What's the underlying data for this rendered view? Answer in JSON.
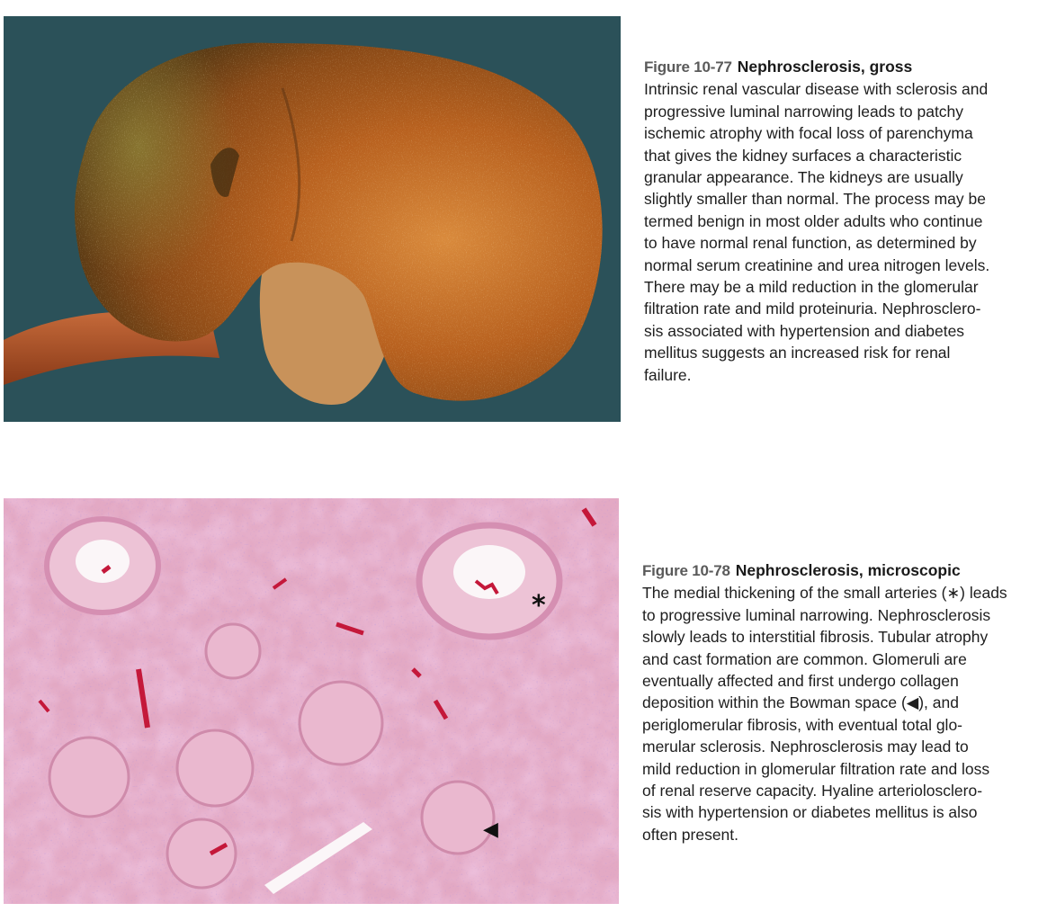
{
  "figures": [
    {
      "number": "Figure 10-77",
      "title": "Nephrosclerosis, gross",
      "caption_lines": [
        "Intrinsic renal vascular disease with sclerosis and",
        "progressive luminal narrowing leads to patchy",
        "ischemic atrophy with focal loss of parenchyma",
        "that gives the kidney surfaces a characteristic",
        "granular appearance. The kidneys are usually",
        "slightly smaller than normal. The process may be",
        "termed benign in most older adults who continue",
        "to have normal renal function, as determined by",
        "normal serum creatinine and urea nitrogen levels.",
        "There may be a mild reduction in the glomerular",
        "filtration rate and mild proteinuria. Nephrosclero-",
        "sis associated with hypertension and diabetes",
        "mellitus suggests an increased risk for renal",
        "failure."
      ]
    },
    {
      "number": "Figure 10-78",
      "title": "Nephrosclerosis, microscopic",
      "caption_lines": [
        "The medial thickening of the small arteries (∗) leads",
        "to progressive luminal narrowing. Nephrosclerosis",
        "slowly leads to interstitial fibrosis. Tubular atrophy",
        "and cast formation are common. Glomeruli are",
        "eventually affected and first undergo collagen",
        "deposition within the Bowman space (◀), and",
        "periglomerular fibrosis, with eventual total glo-",
        "merular sclerosis. Nephrosclerosis may lead to",
        "mild reduction in glomerular filtration rate and loss",
        "of renal reserve capacity. Hyaline arteriolosclero-",
        "sis with hypertension or diabetes mellitus is also",
        "often present."
      ]
    }
  ],
  "image_markers": {
    "star": "*",
    "arrowhead": "◀"
  },
  "colors": {
    "gross_background": "#2b5159",
    "kidney_surface": "#a8541f",
    "histology_background": "#e3a9c4",
    "figure_number_gray": "#5a5a5a"
  }
}
